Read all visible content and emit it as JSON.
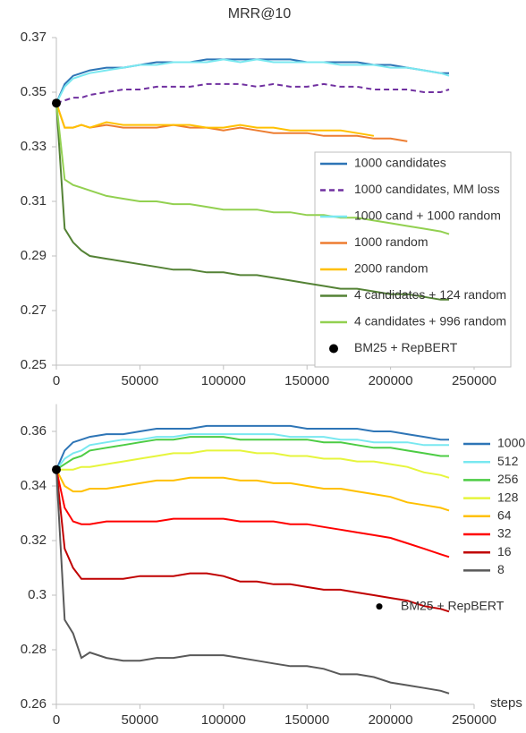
{
  "chart_data": [
    {
      "type": "line",
      "title": "MRR@10",
      "x": [
        0,
        5000,
        10000,
        15000,
        20000,
        30000,
        40000,
        50000,
        60000,
        70000,
        80000,
        90000,
        100000,
        110000,
        120000,
        130000,
        140000,
        150000,
        160000,
        170000,
        180000,
        190000,
        200000,
        210000,
        220000,
        230000,
        235000
      ],
      "xlim": [
        0,
        250000
      ],
      "xticks": [
        0,
        50000,
        100000,
        150000,
        200000,
        250000
      ],
      "ylim": [
        0.25,
        0.37
      ],
      "yticks": [
        0.25,
        0.27,
        0.29,
        0.31,
        0.33,
        0.35,
        0.37
      ],
      "legend": "lower right",
      "legend_frame": true,
      "series": [
        {
          "name": "1000 candidates",
          "color": "#2e75b6",
          "values": [
            0.346,
            0.353,
            0.356,
            0.357,
            0.358,
            0.359,
            0.359,
            0.36,
            0.361,
            0.361,
            0.361,
            0.362,
            0.362,
            0.362,
            0.362,
            0.362,
            0.362,
            0.361,
            0.361,
            0.361,
            0.361,
            0.36,
            0.36,
            0.359,
            0.358,
            0.357,
            0.357
          ]
        },
        {
          "name": "1000 candidates, MM loss",
          "color": "#7030a0",
          "style": "dashed",
          "values": [
            0.346,
            0.347,
            0.348,
            0.348,
            0.349,
            0.35,
            0.351,
            0.351,
            0.352,
            0.352,
            0.352,
            0.353,
            0.353,
            0.353,
            0.352,
            0.353,
            0.352,
            0.352,
            0.353,
            0.352,
            0.352,
            0.351,
            0.351,
            0.351,
            0.35,
            0.35,
            0.351
          ]
        },
        {
          "name": "1000 cand + 1000 random",
          "color": "#79e8f0",
          "values": [
            0.346,
            0.352,
            0.355,
            0.356,
            0.357,
            0.358,
            0.359,
            0.36,
            0.36,
            0.361,
            0.361,
            0.361,
            0.362,
            0.361,
            0.362,
            0.361,
            0.361,
            0.361,
            0.361,
            0.36,
            0.36,
            0.36,
            0.359,
            0.359,
            0.358,
            0.357,
            0.356
          ]
        },
        {
          "name": "1000 random",
          "color": "#ed7d31",
          "values": [
            0.346,
            0.337,
            0.337,
            0.338,
            0.337,
            0.338,
            0.337,
            0.337,
            0.337,
            0.338,
            0.337,
            0.337,
            0.336,
            0.337,
            0.336,
            0.335,
            0.335,
            0.335,
            0.334,
            0.334,
            0.334,
            0.333,
            0.333,
            0.332,
            null,
            null,
            null
          ]
        },
        {
          "name": "2000 random",
          "color": "#ffc000",
          "values": [
            0.346,
            0.337,
            0.337,
            0.338,
            0.337,
            0.339,
            0.338,
            0.338,
            0.338,
            0.338,
            0.338,
            0.337,
            0.337,
            0.338,
            0.337,
            0.337,
            0.336,
            0.336,
            0.336,
            0.336,
            0.335,
            0.334,
            null,
            null,
            null,
            null,
            null
          ]
        },
        {
          "name": "4 candidates + 124 random",
          "color": "#548235",
          "values": [
            0.346,
            0.3,
            0.295,
            0.292,
            0.29,
            0.289,
            0.288,
            0.287,
            0.286,
            0.285,
            0.285,
            0.284,
            0.284,
            0.283,
            0.283,
            0.282,
            0.281,
            0.28,
            0.279,
            0.278,
            0.278,
            0.277,
            0.276,
            0.276,
            0.275,
            0.274,
            0.274
          ]
        },
        {
          "name": "4 candidates + 996 random",
          "color": "#92d050",
          "values": [
            0.346,
            0.318,
            0.316,
            0.315,
            0.314,
            0.312,
            0.311,
            0.31,
            0.31,
            0.309,
            0.309,
            0.308,
            0.307,
            0.307,
            0.307,
            0.306,
            0.306,
            0.305,
            0.305,
            0.304,
            0.304,
            0.303,
            0.302,
            0.301,
            0.3,
            0.299,
            0.298
          ]
        },
        {
          "name": "BM25 + RepBERT",
          "color": "#000000",
          "marker": "circle",
          "x": [
            0
          ],
          "values": [
            0.346
          ]
        }
      ]
    },
    {
      "type": "line",
      "xlabel": "steps",
      "x": [
        0,
        5000,
        10000,
        15000,
        20000,
        30000,
        40000,
        50000,
        60000,
        70000,
        80000,
        90000,
        100000,
        110000,
        120000,
        130000,
        140000,
        150000,
        160000,
        170000,
        180000,
        190000,
        200000,
        210000,
        220000,
        230000,
        235000
      ],
      "xlim": [
        0,
        250000
      ],
      "xticks": [
        0,
        50000,
        100000,
        150000,
        200000,
        250000
      ],
      "ylim": [
        0.26,
        0.37
      ],
      "yticks": [
        0.26,
        0.28,
        0.3,
        0.32,
        0.34,
        0.36
      ],
      "legend": "right",
      "legend_frame": false,
      "series": [
        {
          "name": "1000",
          "color": "#2e75b6",
          "values": [
            0.346,
            0.353,
            0.356,
            0.357,
            0.358,
            0.359,
            0.359,
            0.36,
            0.361,
            0.361,
            0.361,
            0.362,
            0.362,
            0.362,
            0.362,
            0.362,
            0.362,
            0.361,
            0.361,
            0.361,
            0.361,
            0.36,
            0.36,
            0.359,
            0.358,
            0.357,
            0.357
          ]
        },
        {
          "name": "512",
          "color": "#79e8f0",
          "values": [
            0.346,
            0.35,
            0.352,
            0.353,
            0.355,
            0.356,
            0.357,
            0.357,
            0.358,
            0.358,
            0.359,
            0.359,
            0.359,
            0.359,
            0.359,
            0.359,
            0.358,
            0.358,
            0.358,
            0.357,
            0.357,
            0.356,
            0.356,
            0.356,
            0.355,
            0.355,
            0.355
          ]
        },
        {
          "name": "256",
          "color": "#4ccc44",
          "values": [
            0.346,
            0.348,
            0.35,
            0.351,
            0.353,
            0.354,
            0.355,
            0.356,
            0.357,
            0.357,
            0.358,
            0.358,
            0.358,
            0.357,
            0.357,
            0.357,
            0.357,
            0.357,
            0.356,
            0.356,
            0.355,
            0.354,
            0.354,
            0.353,
            0.352,
            0.351,
            0.351
          ]
        },
        {
          "name": "128",
          "color": "#e6f53c",
          "values": [
            0.346,
            0.346,
            0.346,
            0.347,
            0.347,
            0.348,
            0.349,
            0.35,
            0.351,
            0.352,
            0.352,
            0.353,
            0.353,
            0.353,
            0.352,
            0.352,
            0.351,
            0.351,
            0.35,
            0.35,
            0.349,
            0.349,
            0.348,
            0.347,
            0.345,
            0.344,
            0.343
          ]
        },
        {
          "name": "64",
          "color": "#ffc000",
          "values": [
            0.346,
            0.34,
            0.338,
            0.338,
            0.339,
            0.339,
            0.34,
            0.341,
            0.342,
            0.342,
            0.343,
            0.343,
            0.343,
            0.342,
            0.342,
            0.341,
            0.341,
            0.34,
            0.339,
            0.339,
            0.338,
            0.337,
            0.336,
            0.334,
            0.333,
            0.332,
            0.331
          ]
        },
        {
          "name": "32",
          "color": "#ff0000",
          "values": [
            0.346,
            0.332,
            0.327,
            0.326,
            0.326,
            0.327,
            0.327,
            0.327,
            0.327,
            0.328,
            0.328,
            0.328,
            0.328,
            0.327,
            0.327,
            0.327,
            0.326,
            0.326,
            0.325,
            0.324,
            0.323,
            0.322,
            0.321,
            0.319,
            0.317,
            0.315,
            0.314
          ]
        },
        {
          "name": "16",
          "color": "#c00000",
          "values": [
            0.346,
            0.317,
            0.31,
            0.306,
            0.306,
            0.306,
            0.306,
            0.307,
            0.307,
            0.307,
            0.308,
            0.308,
            0.307,
            0.305,
            0.305,
            0.304,
            0.304,
            0.303,
            0.302,
            0.302,
            0.301,
            0.3,
            0.299,
            0.298,
            0.296,
            0.295,
            0.294
          ]
        },
        {
          "name": "8",
          "color": "#595959",
          "values": [
            0.346,
            0.291,
            0.286,
            0.277,
            0.279,
            0.277,
            0.276,
            0.276,
            0.277,
            0.277,
            0.278,
            0.278,
            0.278,
            0.277,
            0.276,
            0.275,
            0.274,
            0.274,
            0.273,
            0.271,
            0.271,
            0.27,
            0.268,
            0.267,
            0.266,
            0.265,
            0.264
          ]
        },
        {
          "name": "BM25 + RepBERT",
          "color": "#000000",
          "marker": "circle",
          "x": [
            0
          ],
          "values": [
            0.346
          ]
        }
      ]
    }
  ]
}
